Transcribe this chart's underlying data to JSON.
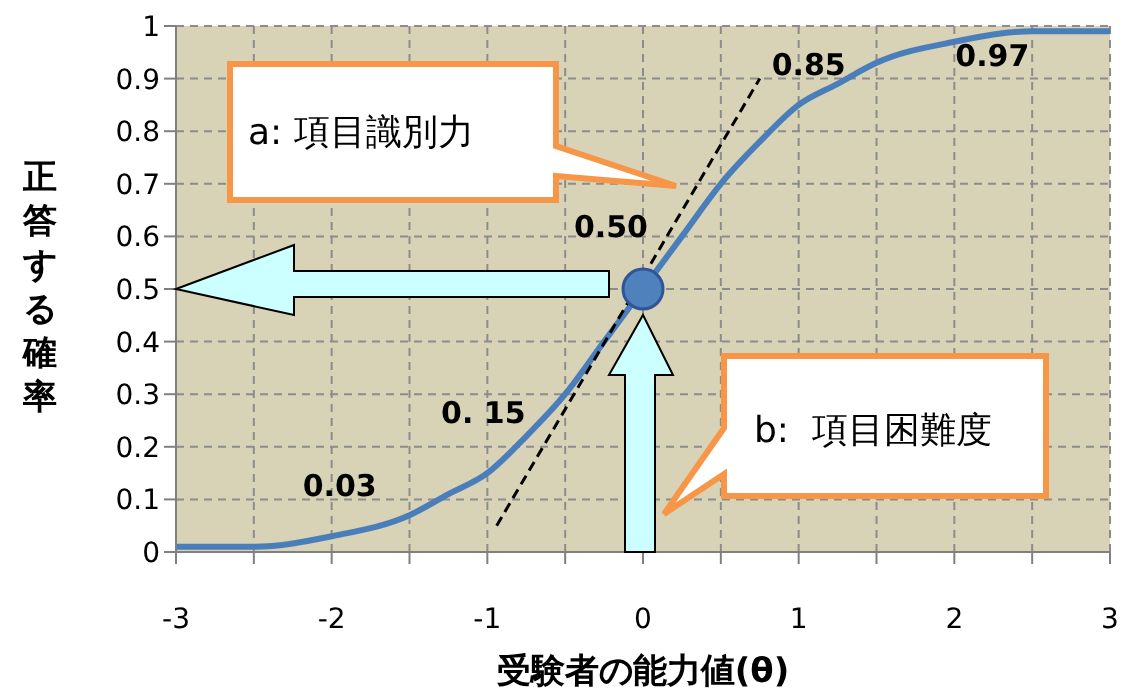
{
  "chart_data": {
    "type": "line",
    "xlabel": "受験者の能力値(θ)",
    "ylabel": "正答する確率",
    "xlim": [
      -3,
      3
    ],
    "ylim": [
      0,
      1
    ],
    "xticks": [
      -3,
      {
        "value": -2.5,
        "label": null
      },
      -2,
      {
        "value": -1.5,
        "label": null
      },
      -1,
      {
        "value": -0.5,
        "label": null
      },
      0,
      {
        "value": 0.5,
        "label": null
      },
      1,
      {
        "value": 1.5,
        "label": null
      },
      2,
      {
        "value": 2.5,
        "label": null
      },
      3
    ],
    "yticks": [
      0,
      0.1,
      0.2,
      0.3,
      0.4,
      0.5,
      0.6,
      0.7,
      0.8,
      0.9,
      1
    ],
    "grid": true,
    "legend": false,
    "series": [
      {
        "color": "#4a7ebb",
        "line_style": "solid",
        "marker": "none",
        "x": [
          -3,
          -2.5,
          -2,
          -1.5,
          -1.25,
          -1,
          -0.75,
          -0.5,
          -0.25,
          0,
          0.25,
          0.5,
          0.75,
          1,
          1.25,
          1.5,
          2,
          2.5,
          3
        ],
        "values": [
          0.01,
          0.01,
          0.03,
          0.07,
          0.11,
          0.15,
          0.22,
          0.3,
          0.4,
          0.5,
          0.6,
          0.7,
          0.78,
          0.85,
          0.89,
          0.93,
          0.97,
          0.99,
          0.99
        ]
      },
      {
        "color": "#000000",
        "line_style": "dashed",
        "marker": "none",
        "x": [
          -0.94,
          0.75
        ],
        "values": [
          0.05,
          0.9
        ]
      },
      {
        "type": "scatter",
        "color": "#4f81bd",
        "marker": "circle",
        "x": [
          0
        ],
        "values": [
          0.5
        ]
      }
    ],
    "annotations": [
      {
        "text": "0.03",
        "x": -2,
        "y": 0.03
      },
      {
        "text": "0. 15",
        "x": -1,
        "y": 0.15
      },
      {
        "text": "0.50",
        "x": 0,
        "y": 0.5
      },
      {
        "text": "0.85",
        "x": 1,
        "y": 0.85
      },
      {
        "text": "0.97",
        "x": 2,
        "y": 0.97
      },
      "a: 項目識別力",
      "b:  項目困難度"
    ]
  }
}
